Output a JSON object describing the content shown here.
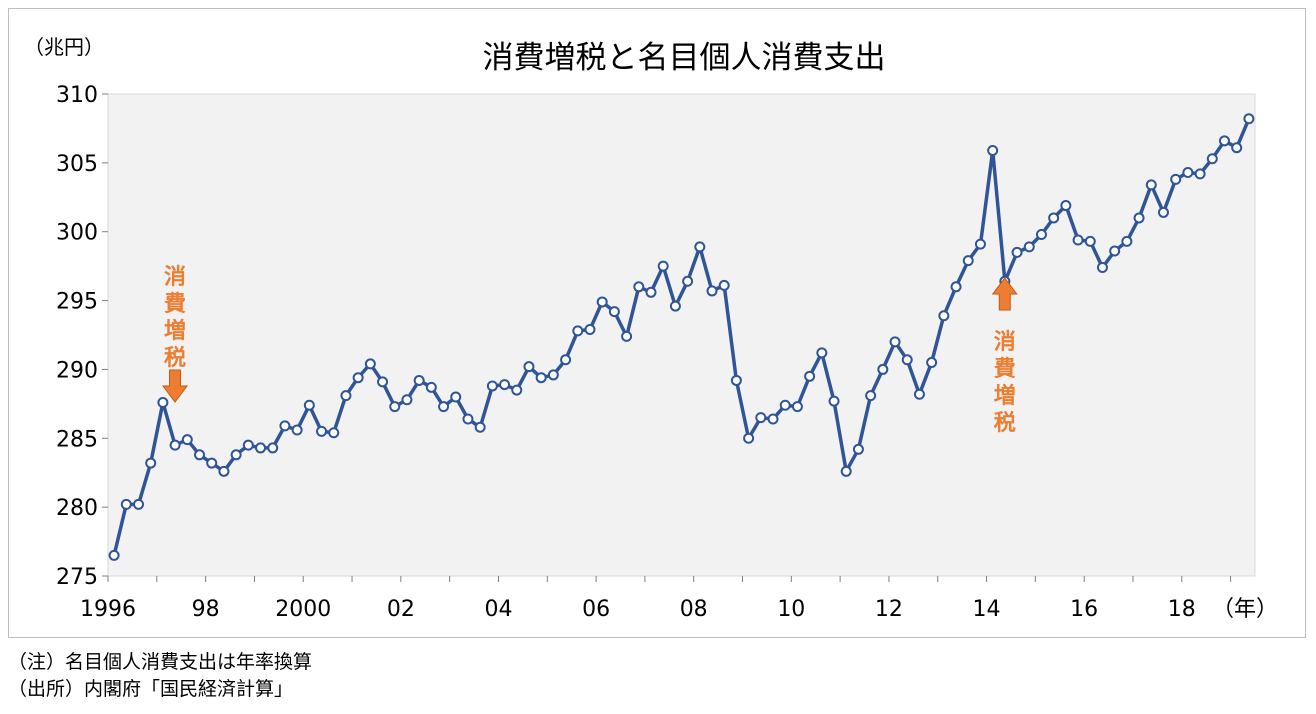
{
  "chart_data": {
    "type": "line",
    "title": "消費増税と名目個人消費支出",
    "unit_label": "（兆円）",
    "xlabel": "（年）",
    "ylim": [
      275,
      310
    ],
    "y_ticks": [
      "275",
      "280",
      "285",
      "290",
      "295",
      "300",
      "305",
      "310"
    ],
    "x_tick_labels": [
      "1996",
      "98",
      "2000",
      "02",
      "04",
      "06",
      "08",
      "10",
      "12",
      "14",
      "16",
      "18"
    ],
    "x_start_year": 1996,
    "quarters_per_year": 4,
    "series": [
      {
        "name": "名目個人消費支出",
        "color": "#2f5597",
        "values": [
          276.5,
          280.2,
          280.2,
          283.2,
          287.6,
          284.5,
          284.9,
          283.8,
          283.2,
          282.6,
          283.8,
          284.5,
          284.3,
          284.3,
          285.9,
          285.6,
          287.4,
          285.5,
          285.4,
          288.1,
          289.4,
          290.4,
          289.1,
          287.3,
          287.8,
          289.2,
          288.7,
          287.3,
          288.0,
          286.4,
          285.8,
          288.8,
          288.9,
          288.5,
          290.2,
          289.4,
          289.6,
          290.7,
          292.8,
          292.9,
          294.9,
          294.2,
          292.4,
          296.0,
          295.6,
          297.5,
          294.6,
          296.4,
          298.9,
          295.7,
          296.1,
          289.2,
          285.0,
          286.5,
          286.4,
          287.4,
          287.3,
          289.5,
          291.2,
          287.7,
          282.6,
          284.2,
          288.1,
          290.0,
          292.0,
          290.7,
          288.2,
          290.5,
          293.9,
          296.0,
          297.9,
          299.1,
          305.9,
          296.4,
          298.5,
          298.9,
          299.8,
          301.0,
          301.9,
          299.4,
          299.3,
          297.4,
          298.6,
          299.3,
          301.0,
          303.4,
          301.4,
          303.8,
          304.3,
          304.2,
          305.3,
          306.6,
          306.1,
          308.2
        ]
      }
    ],
    "annotations": [
      {
        "text": "消費増税",
        "label_chars": [
          "消",
          "費",
          "増",
          "税"
        ],
        "year": 1997.25,
        "arrow": "down",
        "color": "#ed7d31"
      },
      {
        "text": "消費増税",
        "label_chars": [
          "消",
          "費",
          "増",
          "税"
        ],
        "year": 2014.25,
        "arrow": "up",
        "color": "#ed7d31"
      }
    ]
  },
  "notes": {
    "note1": "（注）名目個人消費支出は年率換算",
    "note2": "（出所）内閣府「国民経済計算」"
  }
}
